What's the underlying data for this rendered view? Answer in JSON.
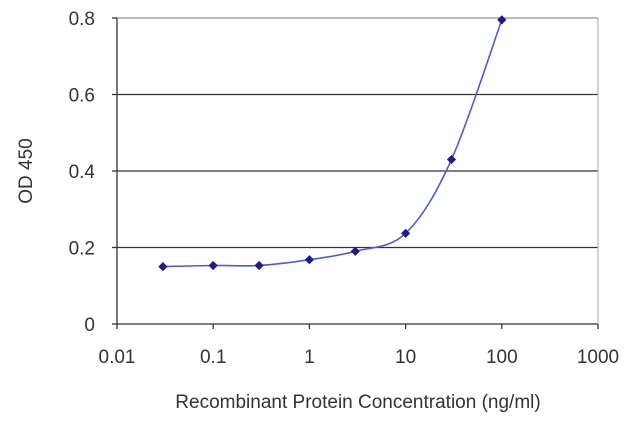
{
  "chart_data": {
    "type": "line",
    "xscale": "log",
    "x": [
      0.03,
      0.1,
      0.3,
      1,
      3,
      10,
      30,
      100
    ],
    "series": [
      {
        "values": [
          0.15,
          0.153,
          0.153,
          0.168,
          0.19,
          0.237,
          0.43,
          0.795
        ],
        "color": "#1c1c8c"
      }
    ],
    "xlabel": "Recombinant Protein Concentration (ng/ml)",
    "ylabel": "OD 450",
    "xlim": [
      0.01,
      1000
    ],
    "ylim": [
      0,
      0.8
    ],
    "xticks": [
      "0.01",
      "0.1",
      "1",
      "10",
      "100",
      "1000"
    ],
    "yticks": [
      "0",
      "0.2",
      "0.4",
      "0.6",
      "0.8"
    ],
    "grid": "horizontal",
    "legend": "none",
    "colors": {
      "line": "#4a5fd0",
      "marker": "#1c1c8c",
      "grid": "#333333",
      "axis": "#333333"
    }
  }
}
